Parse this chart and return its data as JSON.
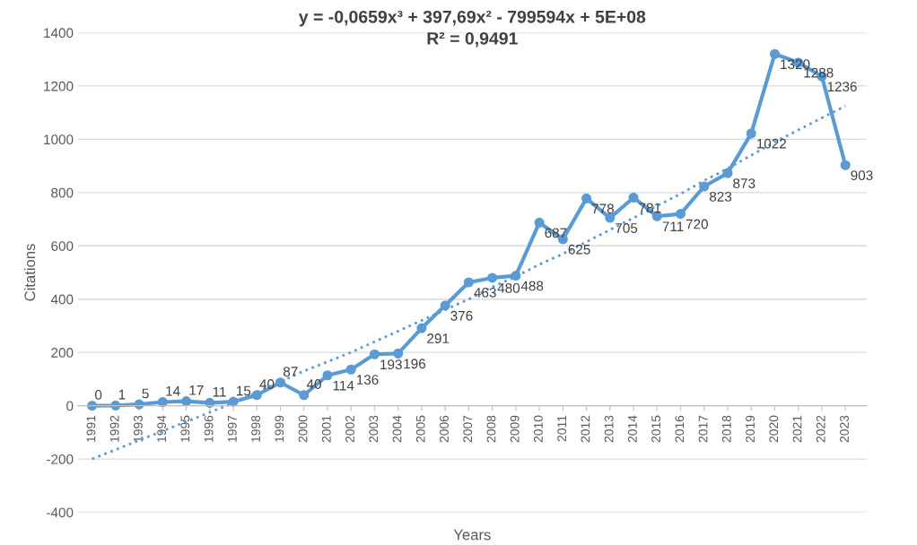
{
  "chart_data": {
    "type": "line",
    "ylabel": "Citations",
    "xlabel": "Years",
    "categories": [
      "1991",
      "1992",
      "1993",
      "1994",
      "1995",
      "1996",
      "1997",
      "1998",
      "1999",
      "2000",
      "2001",
      "2002",
      "2003",
      "2004",
      "2005",
      "2006",
      "2007",
      "2008",
      "2009",
      "2010",
      "2011",
      "2012",
      "2013",
      "2014",
      "2015",
      "2016",
      "2017",
      "2018",
      "2019",
      "2020",
      "2021",
      "2022",
      "2023"
    ],
    "series": [
      {
        "color": "#5b9bd5",
        "marker": "circle",
        "line_style": "solid",
        "data_labels": true,
        "values": [
          0,
          1,
          5,
          14,
          17,
          11,
          15,
          40,
          87,
          40,
          114,
          136,
          193,
          196,
          291,
          376,
          463,
          480,
          488,
          687,
          625,
          778,
          705,
          781,
          711,
          720,
          823,
          873,
          1022,
          1320,
          1288,
          1236,
          903
        ]
      },
      {
        "type": "line",
        "color": "#5b9bd5",
        "marker": "none",
        "line_style": "dotted",
        "values": [
          -200,
          -165,
          -130,
          -95,
          -60,
          -25,
          10,
          50,
          90,
          130,
          165,
          200,
          240,
          280,
          320,
          360,
          400,
          445,
          485,
          530,
          570,
          615,
          660,
          705,
          750,
          795,
          845,
          890,
          940,
          990,
          1035,
          1080,
          1125
        ]
      }
    ],
    "annotations": [
      "y = -0,0659x³ + 397,69x² - 799594x + 5E+08",
      "R² = 0,9491"
    ],
    "ylim": [
      -400,
      1400
    ],
    "yticks": [
      -400,
      -200,
      0,
      200,
      400,
      600,
      800,
      1000,
      1200,
      1400
    ],
    "grid": "y",
    "legend": false
  }
}
